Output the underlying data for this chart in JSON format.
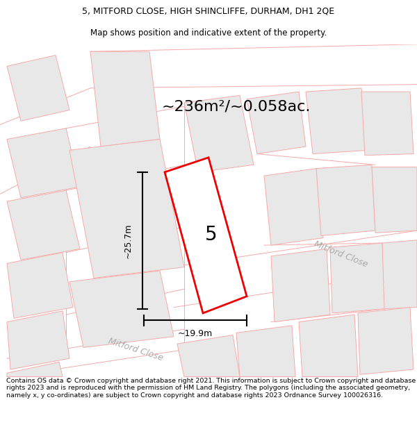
{
  "title_line1": "5, MITFORD CLOSE, HIGH SHINCLIFFE, DURHAM, DH1 2QE",
  "title_line2": "Map shows position and indicative extent of the property.",
  "area_text": "~236m²/~0.058ac.",
  "dim_width": "~19.9m",
  "dim_height": "~25.7m",
  "label_number": "5",
  "road_label_upper": "Mitford Close",
  "road_label_lower": "Mitford Close",
  "footer_text": "Contains OS data © Crown copyright and database right 2021. This information is subject to Crown copyright and database rights 2023 and is reproduced with the permission of HM Land Registry. The polygons (including the associated geometry, namely x, y co-ordinates) are subject to Crown copyright and database rights 2023 Ordnance Survey 100026316.",
  "bg_color": "#ffffff",
  "plot_fill": "#e8e8e8",
  "road_line_color": "#f5aaaa",
  "red_outline_color": "#ee0000",
  "black_color": "#000000",
  "road_label_color": "#aaaaaa",
  "title_fontsize": 9.0,
  "area_fontsize": 16,
  "label_fontsize": 20,
  "dim_fontsize": 9,
  "road_fontsize": 9,
  "footer_fontsize": 6.8
}
